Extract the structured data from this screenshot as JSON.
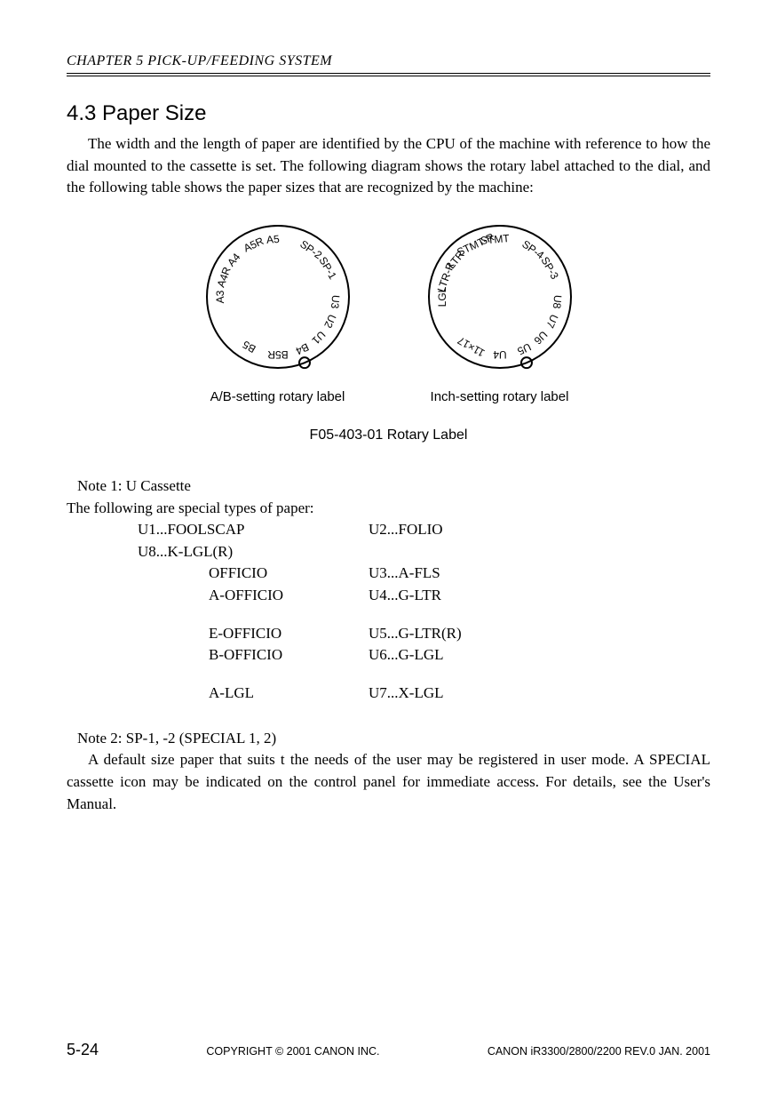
{
  "header": {
    "chapter": "CHAPTER 5 PICK-UP/FEEDING SYSTEM"
  },
  "section": {
    "title": "4.3  Paper Size",
    "paragraph": "The width and the length of paper are identified by the CPU of the machine with reference to how the dial mounted to the cassette is set. The following diagram shows the rotary label attached to the dial, and the following table shows the paper sizes that are recognized by the machine:"
  },
  "dials": {
    "ab": {
      "caption": "A/B-setting rotary label",
      "radius": 80,
      "stroke": "#000000",
      "stroke_width": 2,
      "font_size": 12,
      "labels": [
        "A3",
        "A4R",
        "A4",
        "A5R",
        "A5",
        "SP-2",
        "SP-1",
        "U3",
        "U2",
        "U1",
        "B4",
        "B5R",
        "B5"
      ],
      "angles": [
        180,
        160,
        140,
        115,
        95,
        55,
        30,
        355,
        335,
        315,
        295,
        270,
        240
      ],
      "notch_angle": 292
    },
    "inch": {
      "caption": "Inch-setting rotary label",
      "radius": 80,
      "stroke": "#000000",
      "stroke_width": 2,
      "font_size": 12,
      "labels": [
        "LGL",
        "LTR-R",
        "LTR",
        "STMT-R",
        "STMT",
        "SP-4",
        "SP-3",
        "U8",
        "U7",
        "U6",
        "U5",
        "U4",
        "11×17"
      ],
      "angles": [
        180,
        160,
        140,
        115,
        95,
        55,
        30,
        355,
        335,
        315,
        295,
        270,
        240
      ],
      "notch_angle": 292
    },
    "figure_caption": "F05-403-01 Rotary Label"
  },
  "notes": {
    "note1_label": "Note 1: U Cassette",
    "note1_intro": "The following are special types of paper:",
    "specs": [
      {
        "left": "U1...FOOLSCAP",
        "right": "U2...FOLIO",
        "leftClass": ""
      },
      {
        "left": "U8...K-LGL(R)",
        "right": "",
        "leftClass": ""
      },
      {
        "left": "OFFICIO",
        "right": "U3...A-FLS",
        "leftClass": "sub"
      },
      {
        "left": "A-OFFICIO",
        "right": "U4...G-LTR",
        "leftClass": "sub"
      },
      {
        "gap": true
      },
      {
        "left": "E-OFFICIO",
        "right": "U5...G-LTR(R)",
        "leftClass": "sub"
      },
      {
        "left": "B-OFFICIO",
        "right": "U6...G-LGL",
        "leftClass": "sub"
      },
      {
        "gap": true
      },
      {
        "left": "A-LGL",
        "right": "U7...X-LGL",
        "leftClass": "sub"
      }
    ],
    "note2_label": "Note 2: SP-1, -2 (SPECIAL 1, 2)",
    "note2_body": "A default size paper that suits t the needs of the user may be registered in user mode. A SPECIAL cassette icon may be indicated on the control panel for immediate access. For details, see the User's Manual."
  },
  "footer": {
    "page": "5-24",
    "copyright": "COPYRIGHT © 2001 CANON INC.",
    "model": "CANON iR3300/2800/2200 REV.0 JAN. 2001"
  }
}
